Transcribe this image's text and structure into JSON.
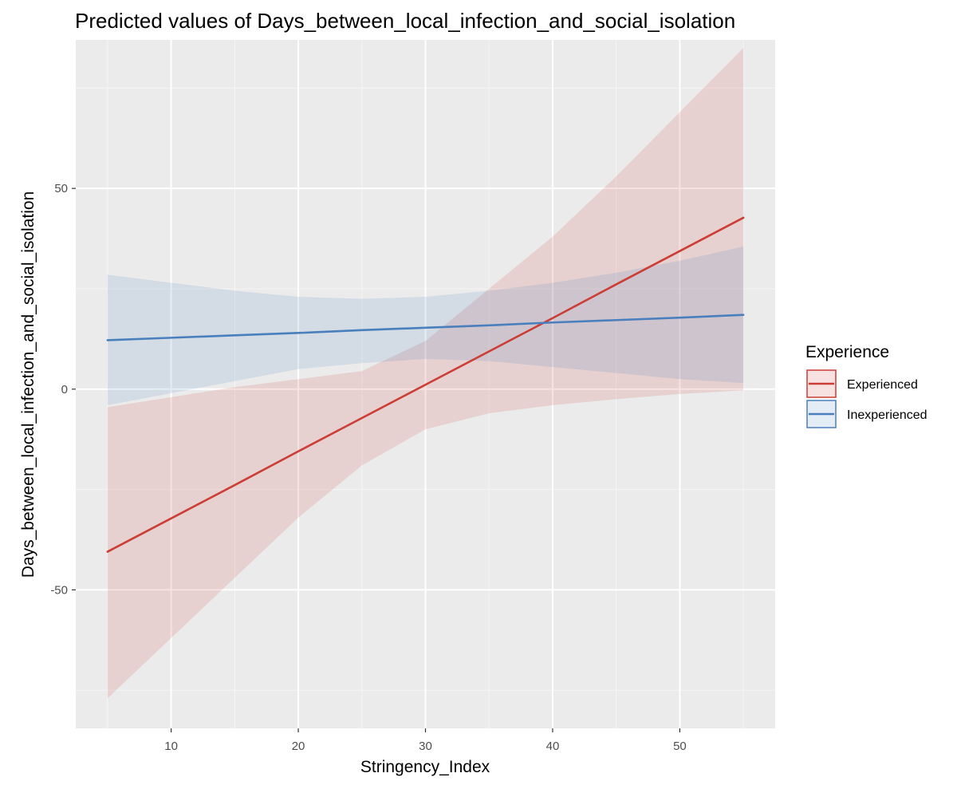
{
  "chart_data": {
    "type": "line",
    "title": "Predicted values of Days_between_local_infection_and_social_isolation",
    "xlabel": "Stringency_Index",
    "ylabel": "Days_between_local_infection_and_social_isolation",
    "xlim": [
      2.5,
      57.5
    ],
    "ylim": [
      -84.5,
      87
    ],
    "x_ticks": [
      10,
      20,
      30,
      40,
      50
    ],
    "x_tick_labels": [
      "10",
      "20",
      "30",
      "40",
      "50"
    ],
    "y_ticks": [
      -50,
      0,
      50
    ],
    "y_tick_labels": [
      "-50",
      "0",
      "50"
    ],
    "grid": true,
    "legend": {
      "title": "Experience",
      "position": "right"
    },
    "series": [
      {
        "name": "Experienced",
        "color": "#cc3d35",
        "x": [
          5,
          10,
          15,
          20,
          25,
          30,
          35,
          40,
          45,
          50,
          55
        ],
        "y": [
          -40.5,
          -32.2,
          -23.9,
          -15.5,
          -7.2,
          1.1,
          9.4,
          17.7,
          26.1,
          34.4,
          42.7
        ],
        "ci_lower": [
          -77,
          -62,
          -47,
          -32,
          -19,
          -10,
          -6,
          -4,
          -2.5,
          -1.2,
          -0.3
        ],
        "ci_upper": [
          -4.5,
          -2,
          0.5,
          2.5,
          4.5,
          12,
          25,
          38,
          53,
          69,
          85
        ]
      },
      {
        "name": "Inexperienced",
        "color": "#4a7fbd",
        "x": [
          5,
          10,
          15,
          20,
          25,
          30,
          35,
          40,
          45,
          50,
          55
        ],
        "y": [
          12.2,
          12.8,
          13.4,
          14.0,
          14.7,
          15.3,
          15.9,
          16.6,
          17.2,
          17.8,
          18.5
        ],
        "ci_lower": [
          -4,
          -1,
          2,
          5,
          6.5,
          7.5,
          7,
          5.5,
          4,
          2.5,
          1.5
        ],
        "ci_upper": [
          28.5,
          26.5,
          24.5,
          23,
          22.5,
          23,
          24.5,
          26.5,
          29,
          32,
          35.5
        ]
      }
    ]
  }
}
